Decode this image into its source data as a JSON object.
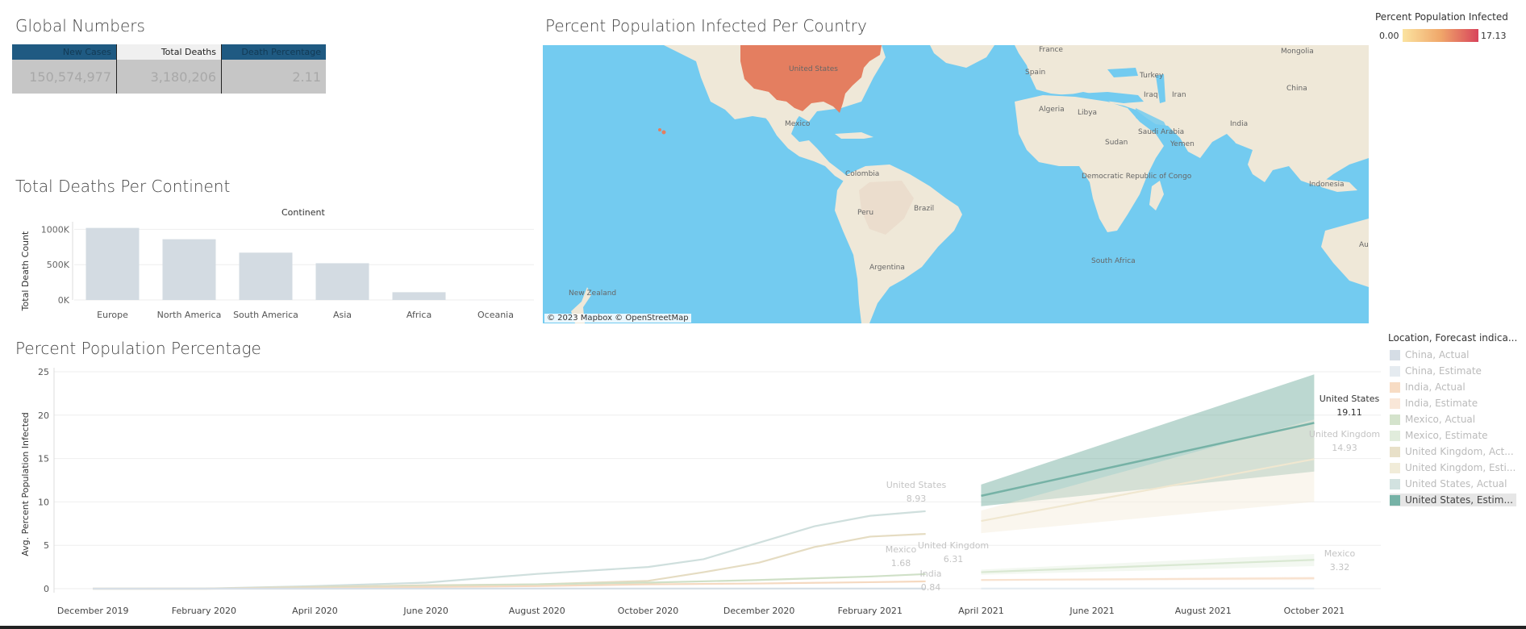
{
  "global": {
    "title": "Global Numbers",
    "headers": [
      "New Cases",
      "Total Deaths",
      "Death Percentage"
    ],
    "values": [
      "150,574,977",
      "3,180,206",
      "2.11"
    ]
  },
  "continent": {
    "title": "Total Deaths Per Continent",
    "header": "Continent",
    "chart_data": {
      "type": "bar",
      "title": "Total Deaths Per Continent",
      "categories": [
        "Europe",
        "North America",
        "South America",
        "Asia",
        "Africa",
        "Oceania"
      ],
      "values": [
        1020000,
        860000,
        670000,
        520000,
        110000,
        1000
      ],
      "ylabel": "Total Death Count",
      "ylim": [
        0,
        1050000
      ],
      "yticks": [
        0,
        500000,
        1000000
      ],
      "ytick_labels": [
        "0K",
        "500K",
        "1000K"
      ]
    }
  },
  "map": {
    "title": "Percent Population Infected Per Country",
    "attribution": "© 2023 Mapbox  © OpenStreetMap",
    "labels": [
      "United States",
      "Mexico",
      "Colombia",
      "Peru",
      "Brazil",
      "Argentina",
      "Algeria",
      "Libya",
      "Sudan",
      "Saudi Arabia",
      "Iran",
      "Iraq",
      "Turkey",
      "Spain",
      "France",
      "Mongolia",
      "China",
      "India",
      "Yemen",
      "Democratic Republic of Congo",
      "South Africa",
      "Indonesia",
      "New Zealand",
      "Au"
    ],
    "colors": {
      "ocean": "#73cbf0",
      "land": "#efe8d8",
      "us": "#e47e60"
    }
  },
  "map_legend": {
    "title": "Percent Population Infected",
    "min": "0.00",
    "max": "17.13"
  },
  "line": {
    "title": "Percent Population Percentage",
    "legend_title": "Location, Forecast indica...",
    "legend": [
      {
        "label": "China, Actual",
        "color": "#d5dde5"
      },
      {
        "label": "China, Estimate",
        "color": "#e5ebf0"
      },
      {
        "label": "India, Actual",
        "color": "#f7dcc4"
      },
      {
        "label": "India, Estimate",
        "color": "#f9e7d8"
      },
      {
        "label": "Mexico, Actual",
        "color": "#d4e3cc"
      },
      {
        "label": "Mexico, Estimate",
        "color": "#e1ecdc"
      },
      {
        "label": "United Kingdom, Act...",
        "color": "#e8e0c8"
      },
      {
        "label": "United Kingdom, Esti...",
        "color": "#f1ecd9"
      },
      {
        "label": "United States, Actual",
        "color": "#d2e2e0"
      },
      {
        "label": "United States, Estim...",
        "color": "#76b2a6"
      }
    ],
    "annotations": {
      "us_actual_name": "United States",
      "us_actual_val": "8.93",
      "uk_actual_name": "United Kingdom",
      "uk_actual_val": "6.31",
      "mx_actual_name": "Mexico",
      "mx_actual_val": "1.68",
      "in_actual_name": "India",
      "in_actual_val": "0.84",
      "us_est_name": "United States",
      "us_est_val": "19.11",
      "uk_est_name": "United Kingdom",
      "uk_est_val": "14.93",
      "mx_est_name": "Mexico",
      "mx_est_val": "3.32"
    },
    "chart_data": {
      "type": "line",
      "title": "Percent Population Percentage",
      "ylabel": "Avg. Percent Population Infected",
      "ylim": [
        0,
        25
      ],
      "yticks": [
        0,
        5,
        10,
        15,
        20,
        25
      ],
      "x_tick_labels": [
        "December 2019",
        "February 2020",
        "April 2020",
        "June 2020",
        "August 2020",
        "October 2020",
        "December 2020",
        "February 2021",
        "April 2021",
        "June 2021",
        "August 2021",
        "October 2021"
      ],
      "x_tick_months": [
        0,
        2,
        4,
        6,
        8,
        10,
        12,
        14,
        16,
        18,
        20,
        22
      ],
      "series": [
        {
          "name": "United States, Actual",
          "color": "#cfdfdd",
          "x": [
            0,
            2,
            4,
            6,
            8,
            10,
            11,
            12,
            13,
            14,
            15
          ],
          "y": [
            0,
            0.01,
            0.3,
            0.7,
            1.7,
            2.5,
            3.4,
            5.3,
            7.2,
            8.4,
            8.93
          ]
        },
        {
          "name": "United Kingdom, Actual",
          "color": "#e5dcc2",
          "x": [
            0,
            2,
            4,
            6,
            8,
            10,
            11,
            12,
            13,
            14,
            15
          ],
          "y": [
            0,
            0,
            0.2,
            0.4,
            0.5,
            0.9,
            1.9,
            3.0,
            4.8,
            6.0,
            6.31
          ]
        },
        {
          "name": "Mexico, Actual",
          "color": "#cfe0c7",
          "x": [
            0,
            2,
            4,
            6,
            8,
            10,
            12,
            14,
            15
          ],
          "y": [
            0,
            0,
            0.1,
            0.3,
            0.5,
            0.7,
            1.0,
            1.4,
            1.68
          ]
        },
        {
          "name": "India, Actual",
          "color": "#f5d9c0",
          "x": [
            0,
            2,
            4,
            6,
            8,
            10,
            12,
            14,
            15
          ],
          "y": [
            0,
            0,
            0.05,
            0.2,
            0.3,
            0.5,
            0.6,
            0.75,
            0.84
          ]
        },
        {
          "name": "China, Actual",
          "color": "#d7dfe6",
          "x": [
            0,
            4,
            8,
            12,
            15
          ],
          "y": [
            0,
            0,
            0.01,
            0.01,
            0.01
          ]
        },
        {
          "name": "United States, Estimate",
          "color": "#76b2a6",
          "x": [
            16,
            22
          ],
          "y": [
            10.7,
            19.11
          ],
          "band_lo": [
            9.5,
            13.5
          ],
          "band_hi": [
            12.0,
            24.7
          ],
          "band_color": "#6aa89a"
        },
        {
          "name": "United Kingdom, Estimate",
          "color": "#f0e7d0",
          "x": [
            16,
            22
          ],
          "y": [
            7.8,
            14.93
          ],
          "band_lo": [
            6.4,
            10.0
          ],
          "band_hi": [
            9.0,
            19.5
          ],
          "band_color": "#f3ecd9"
        },
        {
          "name": "Mexico, Estimate",
          "color": "#d9e8d2",
          "x": [
            16,
            22
          ],
          "y": [
            1.9,
            3.32
          ],
          "band_lo": [
            1.6,
            2.6
          ],
          "band_hi": [
            2.2,
            4.0
          ],
          "band_color": "#e5f0df"
        },
        {
          "name": "India, Estimate",
          "color": "#f8e2cf",
          "x": [
            16,
            22
          ],
          "y": [
            1.0,
            1.2
          ],
          "band_lo": [
            0.9,
            1.0
          ],
          "band_hi": [
            1.1,
            1.4
          ],
          "band_color": "#fbeee2"
        },
        {
          "name": "China, Estimate",
          "color": "#e6ecf1",
          "x": [
            16,
            22
          ],
          "y": [
            0.01,
            0.01
          ]
        }
      ]
    }
  }
}
